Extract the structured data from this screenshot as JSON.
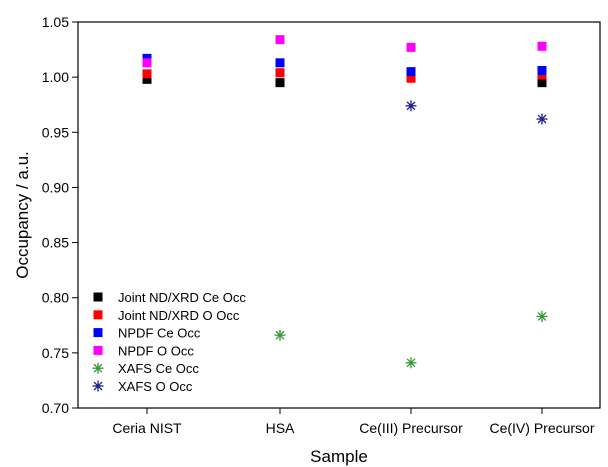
{
  "chart_data": {
    "type": "scatter",
    "xlabel": "Sample",
    "ylabel": "Occupancy / a.u.",
    "categories": [
      "Ceria NIST",
      "HSA",
      "Ce(III) Precursor",
      "Ce(IV) Precursor"
    ],
    "ylim": [
      0.7,
      1.05
    ],
    "yticks": [
      "0.70",
      "0.75",
      "0.80",
      "0.85",
      "0.90",
      "0.95",
      "1.00",
      "1.05"
    ],
    "grid": false,
    "legend_position": "bottom-left",
    "series": [
      {
        "name": "Joint ND/XRD Ce Occ",
        "marker": "square",
        "color": "#000000",
        "values": [
          0.998,
          0.995,
          1.001,
          0.995
        ]
      },
      {
        "name": "Joint ND/XRD O Occ",
        "marker": "square",
        "color": "#ff0000",
        "values": [
          1.003,
          1.004,
          0.999,
          1.002
        ]
      },
      {
        "name": "NPDF Ce Occ",
        "marker": "square",
        "color": "#0000ff",
        "values": [
          1.017,
          1.013,
          1.005,
          1.006
        ]
      },
      {
        "name": "NPDF O Occ",
        "marker": "square",
        "color": "#ff00ff",
        "values": [
          1.013,
          1.034,
          1.027,
          1.028
        ]
      },
      {
        "name": "XAFS Ce Occ",
        "marker": "asterisk",
        "color": "#339933",
        "values": [
          null,
          0.766,
          0.741,
          0.783
        ]
      },
      {
        "name": "XAFS O Occ",
        "marker": "asterisk",
        "color": "#1a1a8c",
        "values": [
          null,
          null,
          0.974,
          0.962
        ]
      }
    ]
  }
}
